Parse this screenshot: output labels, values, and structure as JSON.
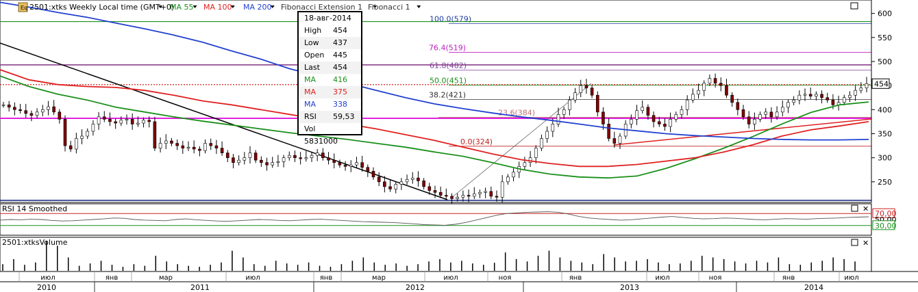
{
  "header": {
    "title": "2501:xtks Weekly Local time (GMT+0)",
    "indicators": [
      {
        "label": "MA 55",
        "color": "#1a8f1a"
      },
      {
        "label": "MA 100",
        "color": "#e02020"
      },
      {
        "label": "MA 200",
        "color": "#2040d0"
      },
      {
        "label": "Fibonacci Extension 1",
        "color": "#333333"
      },
      {
        "label": "Fibonacci 1",
        "color": "#333333"
      }
    ]
  },
  "info": {
    "date": "18-авг-2014",
    "rows": [
      {
        "k": "High",
        "v": "454",
        "color": "#000000"
      },
      {
        "k": "Low",
        "v": "437",
        "color": "#000000"
      },
      {
        "k": "Open",
        "v": "445",
        "color": "#000000"
      },
      {
        "k": "Last",
        "v": "454",
        "color": "#000000"
      },
      {
        "k": "MA",
        "v": "416",
        "color": "#1a8f1a"
      },
      {
        "k": "MA",
        "v": "375",
        "color": "#e02020"
      },
      {
        "k": "MA",
        "v": "338",
        "color": "#2040d0"
      },
      {
        "k": "RSI",
        "v": "59,53",
        "color": "#000000"
      },
      {
        "k": "Vol",
        "v": "5831000",
        "color": "#000000"
      }
    ]
  },
  "fib_labels": [
    {
      "text": "100.0(579)",
      "level": 579,
      "color": "#2040a0"
    },
    {
      "text": "76.4(519)",
      "level": 519,
      "color": "#c020c0"
    },
    {
      "text": "61.8(482)",
      "level": 482,
      "color": "#8040a0"
    },
    {
      "text": "50.0(451)",
      "level": 451,
      "color": "#1a8f1a"
    },
    {
      "text": "38.2(421)",
      "level": 421,
      "color": "#333333"
    },
    {
      "text": "23.6(384)",
      "level": 384,
      "color": "#c07070"
    },
    {
      "text": "0.0(324)",
      "level": 324,
      "color": "#c02020"
    }
  ],
  "price_axis": {
    "ticks": [
      "600",
      "550",
      "500",
      "450",
      "400",
      "350",
      "300",
      "250"
    ],
    "last_label": "454"
  },
  "rsi": {
    "title": "RSI 14 Smoothed",
    "levels": [
      "70,00",
      "50,00",
      "30,00"
    ]
  },
  "volume": {
    "title": "2501:xtksVolume"
  },
  "time_axis": {
    "months": [
      "июл",
      "янв",
      "мар",
      "июл",
      "янв",
      "мар",
      "июл",
      "ноя",
      "янв",
      "июл",
      "ноя",
      "янв",
      "июл"
    ],
    "years": [
      "2010",
      "2011",
      "2012",
      "2013",
      "2014"
    ]
  },
  "chart_data": {
    "type": "candlestick",
    "ylim": [
      210,
      625
    ],
    "x_range": [
      "2010-05",
      "2014-08"
    ],
    "weekly_close_approx": [
      410,
      405,
      400,
      398,
      392,
      388,
      395,
      400,
      406,
      395,
      380,
      325,
      318,
      340,
      345,
      355,
      370,
      385,
      380,
      375,
      372,
      378,
      380,
      370,
      372,
      378,
      375,
      320,
      330,
      335,
      330,
      325,
      320,
      322,
      318,
      315,
      330,
      325,
      320,
      310,
      300,
      290,
      295,
      300,
      310,
      295,
      290,
      285,
      290,
      292,
      300,
      305,
      300,
      298,
      300,
      305,
      310,
      300,
      295,
      290,
      285,
      282,
      285,
      290,
      280,
      272,
      260,
      250,
      240,
      235,
      245,
      250,
      255,
      258,
      252,
      240,
      232,
      228,
      222,
      220,
      215,
      218,
      222,
      220,
      225,
      228,
      230,
      220,
      218,
      250,
      260,
      270,
      282,
      290,
      300,
      320,
      340,
      355,
      370,
      390,
      400,
      420,
      435,
      450,
      445,
      430,
      395,
      370,
      340,
      330,
      345,
      370,
      380,
      398,
      405,
      388,
      375,
      370,
      365,
      380,
      390,
      400,
      420,
      432,
      440,
      455,
      465,
      455,
      450,
      430,
      415,
      400,
      385,
      370,
      380,
      390,
      395,
      385,
      395,
      405,
      415,
      420,
      430,
      432,
      428,
      432,
      425,
      420,
      410,
      415,
      425,
      430,
      440,
      445,
      454
    ],
    "series": [
      {
        "name": "MA 55",
        "color": "#1a8f1a",
        "values": [
          470,
          448,
          432,
          420,
          405,
          395,
          385,
          376,
          368,
          360,
          352,
          345,
          338,
          330,
          322,
          312,
          303,
          290,
          276,
          266,
          260,
          258,
          262,
          278,
          298,
          320,
          344,
          370,
          394,
          410,
          416
        ]
      },
      {
        "name": "MA 100",
        "color": "#e02020",
        "values": [
          483,
          462,
          452,
          448,
          446,
          440,
          430,
          418,
          410,
          400,
          390,
          380,
          370,
          360,
          348,
          336,
          322,
          308,
          296,
          288,
          282,
          282,
          286,
          293,
          300,
          312,
          327,
          345,
          358,
          366,
          375
        ]
      },
      {
        "name": "MA 200",
        "color": "#2040d0",
        "values": [
          623,
          613,
          602,
          592,
          580,
          568,
          555,
          540,
          522,
          505,
          485,
          470,
          455,
          440,
          425,
          412,
          402,
          393,
          385,
          378,
          370,
          362,
          356,
          350,
          346,
          343,
          340,
          338,
          337,
          337,
          338
        ]
      }
    ],
    "rsi_values": [
      48,
      50,
      49,
      51,
      50,
      47,
      45,
      46,
      48,
      50,
      52,
      55,
      54,
      50,
      48,
      47,
      46,
      50,
      52,
      49,
      47,
      45,
      44,
      46,
      48,
      50,
      49,
      47,
      46,
      48,
      50,
      51,
      49,
      47,
      45,
      43,
      42,
      41,
      40,
      38,
      36,
      33,
      32,
      31,
      34,
      40,
      48,
      56,
      64,
      70,
      72,
      74,
      75,
      76,
      74,
      68,
      60,
      55,
      52,
      50,
      48,
      49,
      52,
      55,
      58,
      60,
      57,
      54,
      52,
      53,
      55,
      54,
      52,
      50,
      49,
      51,
      53,
      52,
      51,
      53,
      54,
      55,
      57,
      58,
      59
    ],
    "volume_values": [
      20,
      35,
      18,
      25,
      90,
      75,
      40,
      15,
      22,
      30,
      18,
      12,
      20,
      15,
      45,
      28,
      20,
      15,
      12,
      18,
      25,
      60,
      40,
      20,
      15,
      30,
      22,
      18,
      25,
      15,
      12,
      20,
      30,
      40,
      25,
      18,
      22,
      15,
      20,
      28,
      35,
      25,
      30,
      22,
      18,
      24,
      55,
      35,
      28,
      45,
      60,
      40,
      30,
      25,
      20,
      50,
      40,
      28,
      30,
      35,
      25,
      20,
      22,
      30,
      45,
      40,
      35,
      28,
      22,
      30,
      25,
      40,
      20,
      18,
      25,
      30,
      40,
      35,
      28
    ],
    "xlabel": "",
    "ylabel": ""
  }
}
